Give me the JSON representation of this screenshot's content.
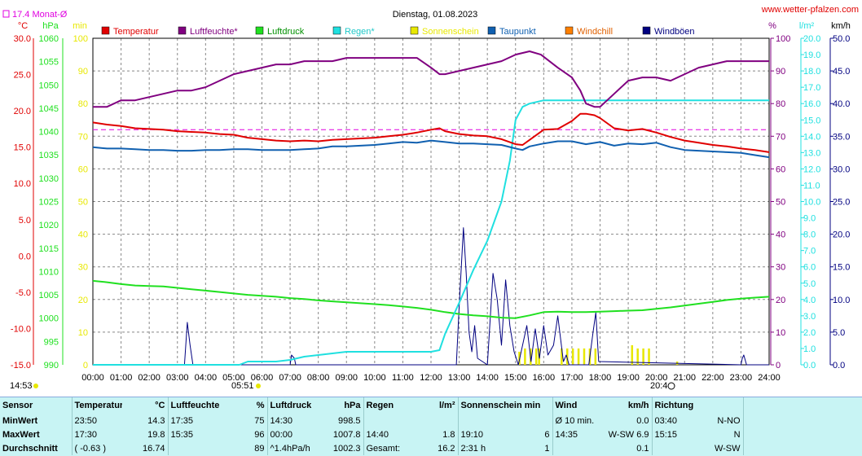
{
  "header": {
    "title": "Dienstag, 01.08.2023",
    "website": "www.wetter-pfalzen.com",
    "monthly_avg_label": "17.4 Monat-Ø",
    "time_now": "14:53",
    "sunrise": "05:51",
    "sunset": "20:4"
  },
  "colors": {
    "temperature": "#e00000",
    "humidity": "#800080",
    "pressure": "#20e020",
    "rain": "#20e0e0",
    "sunshine": "#e8e800",
    "dewpoint": "#1060b0",
    "windchill": "#ff8000",
    "gust": "#000080",
    "month_avg": "#e000e0"
  },
  "chart_data": {
    "type": "line",
    "title": "Dienstag, 01.08.2023",
    "x_ticks": [
      "00:00",
      "01:00",
      "02:00",
      "03:00",
      "04:00",
      "05:00",
      "06:00",
      "07:00",
      "08:00",
      "09:00",
      "10:00",
      "11:00",
      "12:00",
      "13:00",
      "14:00",
      "15:00",
      "16:00",
      "17:00",
      "18:00",
      "19:00",
      "20:00",
      "21:00",
      "22:00",
      "23:00",
      "24:00"
    ],
    "axes": {
      "temp": {
        "unit": "°C",
        "range": [
          -15,
          30
        ],
        "ticks": [
          "-15.0",
          "-10.0",
          "-5.0",
          "0.0",
          "5.0",
          "10.0",
          "15.0",
          "20.0",
          "25.0",
          "30.0"
        ]
      },
      "pressure": {
        "unit": "hPa",
        "range": [
          990,
          1060
        ],
        "ticks": [
          "990",
          "995",
          "1000",
          "1005",
          "1010",
          "1015",
          "1020",
          "1025",
          "1030",
          "1035",
          "1040",
          "1045",
          "1050",
          "1055",
          "1060"
        ]
      },
      "sun": {
        "unit": "min",
        "range": [
          0,
          100
        ],
        "ticks": [
          "0",
          "10",
          "20",
          "30",
          "40",
          "50",
          "60",
          "70",
          "80",
          "90",
          "100"
        ]
      },
      "humidity": {
        "unit": "%",
        "range": [
          0,
          100
        ],
        "ticks": [
          "0",
          "10",
          "20",
          "30",
          "40",
          "50",
          "60",
          "70",
          "80",
          "90",
          "100"
        ]
      },
      "rain": {
        "unit": "l/m²",
        "range": [
          0,
          20
        ],
        "ticks": [
          "0.0",
          "1.0",
          "2.0",
          "3.0",
          "4.0",
          "5.0",
          "6.0",
          "7.0",
          "8.0",
          "9.0",
          "10.0",
          "11.0",
          "12.0",
          "13.0",
          "14.0",
          "15.0",
          "16.0",
          "17.0",
          "18.0",
          "19.0",
          "20.0"
        ]
      },
      "wind": {
        "unit": "km/h",
        "range": [
          0,
          50
        ],
        "ticks": [
          "0.0",
          "5.0",
          "10.0",
          "15.0",
          "20.0",
          "25.0",
          "30.0",
          "35.0",
          "40.0",
          "45.0",
          "50.0"
        ]
      }
    },
    "legend": [
      "Temperatur",
      "Luftfeuchte*",
      "Luftdruck",
      "Regen*",
      "Sonnenschein",
      "Taupunkt",
      "Windchill",
      "Windböen"
    ],
    "month_avg_temp": 17.4,
    "series": [
      {
        "name": "Temperatur",
        "axis": "temp",
        "x": [
          0,
          0.5,
          1,
          1.5,
          2,
          2.5,
          3,
          3.5,
          4,
          4.5,
          5,
          5.5,
          6,
          6.5,
          7,
          7.5,
          8,
          8.5,
          9,
          9.5,
          10,
          10.5,
          11,
          11.5,
          12,
          12.3,
          12.5,
          13,
          13.5,
          14,
          14.5,
          15,
          15.25,
          15.5,
          16,
          16.5,
          17,
          17.3,
          17.5,
          17.8,
          18,
          18.5,
          19,
          19.5,
          20,
          20.5,
          21,
          21.5,
          22,
          22.5,
          23,
          23.5,
          24
        ],
        "y": [
          18.4,
          18.1,
          17.9,
          17.6,
          17.5,
          17.4,
          17.2,
          17.1,
          17.0,
          16.8,
          16.7,
          16.3,
          16.1,
          15.9,
          15.8,
          15.9,
          15.8,
          16.0,
          16.1,
          16.2,
          16.3,
          16.5,
          16.7,
          17.0,
          17.4,
          17.6,
          17.2,
          16.8,
          16.6,
          16.5,
          16.1,
          15.4,
          15.3,
          16.0,
          17.4,
          17.5,
          18.6,
          19.6,
          19.6,
          19.4,
          19.0,
          17.6,
          17.3,
          17.5,
          17.0,
          16.4,
          15.9,
          15.6,
          15.3,
          15.1,
          14.8,
          14.6,
          14.3
        ]
      },
      {
        "name": "Taupunkt",
        "axis": "temp",
        "x": [
          0,
          0.5,
          1,
          1.5,
          2,
          2.5,
          3,
          3.5,
          4,
          4.5,
          5,
          5.5,
          6,
          6.5,
          7,
          7.5,
          8,
          8.5,
          9,
          9.5,
          10,
          10.5,
          11,
          11.5,
          12,
          12.5,
          13,
          13.5,
          14,
          14.5,
          15,
          15.25,
          15.5,
          16,
          16.5,
          17,
          17.5,
          18,
          18.5,
          19,
          19.5,
          20,
          20.5,
          21,
          21.5,
          22,
          22.5,
          23,
          23.5,
          24
        ],
        "y": [
          15.0,
          14.8,
          14.8,
          14.7,
          14.6,
          14.6,
          14.5,
          14.5,
          14.6,
          14.6,
          14.7,
          14.7,
          14.6,
          14.6,
          14.6,
          14.7,
          14.8,
          15.1,
          15.1,
          15.2,
          15.3,
          15.5,
          15.7,
          15.6,
          15.9,
          15.7,
          15.5,
          15.5,
          15.4,
          15.3,
          14.8,
          14.6,
          15.1,
          15.5,
          15.8,
          15.8,
          15.4,
          15.7,
          15.2,
          15.5,
          15.4,
          15.6,
          15.0,
          14.6,
          14.5,
          14.4,
          14.3,
          14.2,
          13.9,
          13.6
        ]
      },
      {
        "name": "Luftfeuchte*",
        "axis": "humidity",
        "x": [
          0,
          0.5,
          1,
          1.5,
          2,
          2.5,
          3,
          3.5,
          4,
          4.5,
          5,
          5.5,
          6,
          6.5,
          7,
          7.5,
          8,
          8.5,
          9,
          9.5,
          10,
          10.5,
          11,
          11.5,
          12,
          12.3,
          12.5,
          13,
          13.5,
          14,
          14.5,
          15,
          15.5,
          15.9,
          16.5,
          17,
          17.3,
          17.5,
          17.8,
          18,
          18.5,
          19,
          19.5,
          20,
          20.5,
          21,
          21.5,
          22,
          22.5,
          23,
          23.5,
          24
        ],
        "y": [
          79,
          79,
          81,
          81,
          82,
          83,
          84,
          84,
          85,
          87,
          89,
          90,
          91,
          92,
          92,
          93,
          93,
          93,
          94,
          94,
          94,
          94,
          94,
          94,
          91,
          89,
          89,
          90,
          91,
          92,
          93,
          95,
          96,
          95,
          91,
          88,
          84,
          80,
          79,
          79,
          83,
          87,
          88,
          88,
          87,
          89,
          91,
          92,
          93,
          93,
          93,
          93
        ]
      },
      {
        "name": "Luftdruck",
        "axis": "pressure",
        "x": [
          0,
          0.5,
          1,
          1.5,
          2,
          2.5,
          3,
          3.5,
          4,
          4.5,
          5,
          5.5,
          6,
          6.5,
          7,
          7.5,
          8,
          8.5,
          9,
          9.5,
          10,
          10.5,
          11,
          11.5,
          12,
          12.5,
          13,
          13.5,
          14,
          14.5,
          15,
          15.5,
          16,
          16.5,
          17,
          17.5,
          18,
          18.5,
          19,
          19.5,
          20,
          20.5,
          21,
          21.5,
          22,
          22.5,
          23,
          23.5,
          24
        ],
        "y": [
          1008.0,
          1007.7,
          1007.3,
          1007.0,
          1006.9,
          1006.8,
          1006.5,
          1006.2,
          1005.9,
          1005.6,
          1005.3,
          1005.0,
          1004.8,
          1004.6,
          1004.3,
          1004.1,
          1003.8,
          1003.6,
          1003.4,
          1003.2,
          1003.0,
          1002.8,
          1002.5,
          1002.2,
          1001.8,
          1001.3,
          1000.9,
          1000.6,
          1000.4,
          1000.1,
          1000.0,
          1000.6,
          1001.3,
          1001.4,
          1001.3,
          1001.3,
          1001.4,
          1001.5,
          1001.6,
          1001.7,
          1002.0,
          1002.3,
          1002.7,
          1003.1,
          1003.5,
          1003.9,
          1004.2,
          1004.4,
          1004.6
        ]
      },
      {
        "name": "Regen*",
        "axis": "rain",
        "x": [
          0,
          5.2,
          5.5,
          6,
          6.5,
          7,
          7.5,
          8,
          8.5,
          9,
          9.5,
          10,
          10.5,
          11,
          11.5,
          12,
          12.3,
          12.5,
          13,
          13.5,
          14,
          14.5,
          14.8,
          15,
          15.25,
          15.5,
          16,
          16.5,
          17,
          18,
          19,
          20,
          21,
          22,
          23,
          24
        ],
        "y": [
          0,
          0,
          0.2,
          0.2,
          0.2,
          0.3,
          0.5,
          0.6,
          0.7,
          0.8,
          0.8,
          0.8,
          0.8,
          0.8,
          0.8,
          0.8,
          0.9,
          1.9,
          3.8,
          5.8,
          7.6,
          10.0,
          12.5,
          15.0,
          15.8,
          16.0,
          16.2,
          16.2,
          16.2,
          16.2,
          16.2,
          16.2,
          16.2,
          16.2,
          16.2,
          16.2
        ]
      },
      {
        "name": "Windböen",
        "axis": "wind",
        "x": [
          0,
          3.25,
          3.35,
          3.45,
          3.55,
          7.0,
          7.05,
          7.15,
          7.2,
          12.9,
          13.0,
          13.15,
          13.25,
          13.35,
          13.45,
          13.55,
          13.65,
          14.0,
          14.2,
          14.35,
          14.5,
          14.65,
          14.8,
          14.95,
          15.1,
          15.4,
          15.55,
          15.7,
          15.85,
          16.0,
          16.15,
          16.35,
          16.5,
          16.7,
          16.8,
          16.9,
          17.6,
          17.75,
          17.85,
          17.95,
          23.0,
          23.05,
          23.1,
          23.2,
          24
        ],
        "y": [
          0,
          0,
          6.5,
          3.0,
          0,
          0,
          1.5,
          1.0,
          0,
          0,
          9.0,
          21.0,
          14.0,
          5.0,
          2.0,
          6.0,
          1.0,
          0,
          14.0,
          10.0,
          3.0,
          13.0,
          6.0,
          2.0,
          0,
          6.0,
          0.5,
          5.5,
          1.0,
          6.0,
          1.5,
          3.0,
          7.5,
          0.5,
          1.5,
          0,
          0,
          5.0,
          8.0,
          0.5,
          0,
          1.0,
          1.5,
          0,
          0
        ]
      },
      {
        "name": "Sonnenschein",
        "axis": "sun",
        "x": [
          15.1,
          15.3,
          15.5,
          15.7,
          15.8,
          16.6,
          16.8,
          17.0,
          17.2,
          17.4,
          17.6,
          17.8,
          19.1,
          19.3,
          19.5,
          19.7,
          20.7
        ],
        "y": [
          4,
          5,
          5,
          5,
          5,
          5,
          5,
          5,
          5,
          5,
          5,
          5,
          6,
          5,
          5,
          5,
          1
        ]
      }
    ]
  },
  "stats": {
    "headers": {
      "sensor": "Sensor",
      "temp": "Temperatur",
      "temp_unit": "°C",
      "hum": "Luftfeuchte",
      "hum_unit": "%",
      "press": "Luftdruck",
      "press_unit": "hPa",
      "rain": "Regen",
      "rain_unit": "l/m²",
      "sun": "Sonnenschein min",
      "wind": "Wind",
      "wind_unit": "km/h",
      "dir": "Richtung"
    },
    "rows": [
      {
        "label": "MinWert",
        "t_time": "23:50",
        "t_val": "14.3",
        "h_time": "17:35",
        "h_val": "75",
        "p_time": "14:30",
        "p_val": "998.5",
        "r_time": "",
        "r_val": "",
        "s_time": "",
        "s_val": "",
        "w_time": "Ø 10 min.",
        "w_val": "0.0",
        "d_time": "03:40",
        "d_val": "N-NO"
      },
      {
        "label": "MaxWert",
        "t_time": "17:30",
        "t_val": "19.8",
        "h_time": "15:35",
        "h_val": "96",
        "p_time": "00:00",
        "p_val": "1007.8",
        "r_time": "14:40",
        "r_val": "1.8",
        "s_time": "19:10",
        "s_val": "6",
        "w_time": "14:35",
        "w_val": "W-SW 6.9",
        "d_time": "15:15",
        "d_val": "N"
      },
      {
        "label": "Durchschnitt",
        "t_time": "( -0.63 )",
        "t_val": "16.74",
        "h_time": "",
        "h_val": "89",
        "p_time": "^1.4hPa/h",
        "p_val": "1002.3",
        "r_time": "Gesamt:",
        "r_val": "16.2",
        "s_time": "2:31 h",
        "s_val": "1",
        "w_time": "",
        "w_val": "0.1",
        "d_time": "",
        "d_val": "W-SW"
      }
    ]
  }
}
